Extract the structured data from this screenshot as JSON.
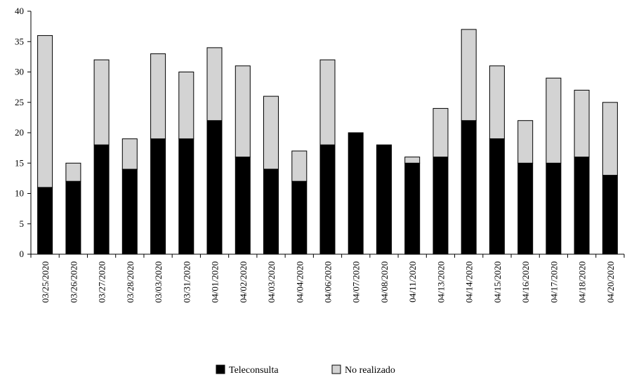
{
  "chart_data": {
    "type": "bar",
    "stacked": true,
    "categories": [
      "03/25/2020",
      "03/26/2020",
      "03/27/2020",
      "03/28/2020",
      "03/03/2020",
      "03/31/2020",
      "04/01/2020",
      "04/02/2020",
      "04/03/2020",
      "04/04/2020",
      "04/06/2020",
      "04/07/2020",
      "04/08/2020",
      "04/11/2020",
      "04/13/2020",
      "04/14/2020",
      "04/15/2020",
      "04/16/2020",
      "04/17/2020",
      "04/18/2020",
      "04/20/2020"
    ],
    "series": [
      {
        "name": "Teleconsulta",
        "color": "#000000",
        "values": [
          11,
          12,
          18,
          14,
          19,
          19,
          22,
          16,
          14,
          12,
          18,
          20,
          18,
          15,
          16,
          22,
          19,
          15,
          15,
          16,
          13
        ]
      },
      {
        "name": "No realizado",
        "color": "#d3d3d3",
        "values": [
          25,
          3,
          14,
          5,
          14,
          11,
          12,
          15,
          12,
          5,
          14,
          0,
          0,
          1,
          8,
          15,
          12,
          7,
          14,
          11,
          12
        ]
      }
    ],
    "title": "",
    "xlabel": "",
    "ylabel": "",
    "ylim": [
      0,
      40
    ],
    "yticks": [
      0,
      5,
      10,
      15,
      20,
      25,
      30,
      35,
      40
    ],
    "grid": false,
    "legend_position": "bottom"
  }
}
